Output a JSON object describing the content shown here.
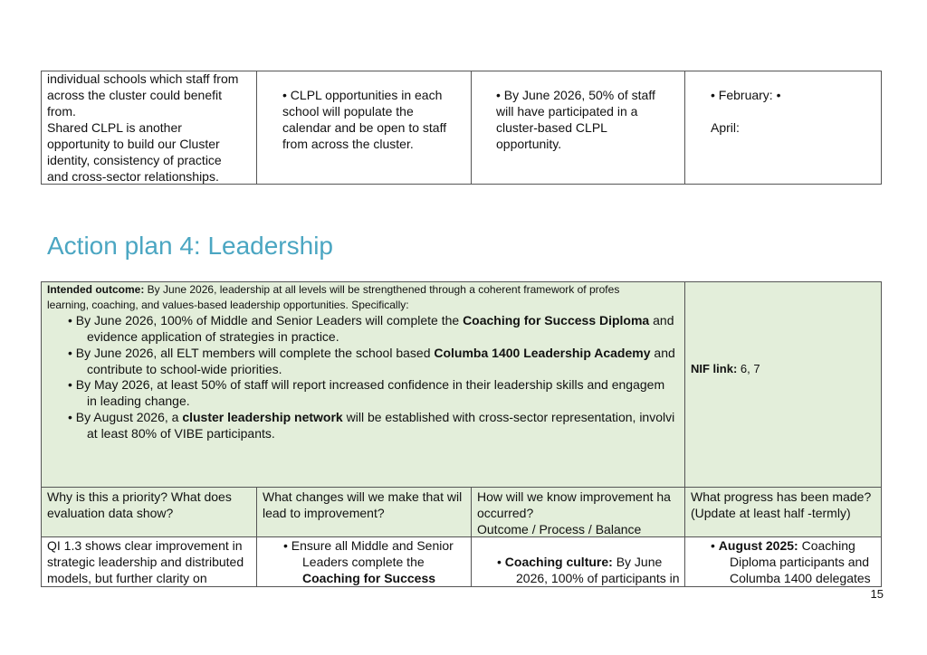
{
  "top_table": {
    "rows": [
      [
        [
          "individual schools which staff from",
          "across the cluster could benefit",
          "from.",
          "Shared CLPL is another",
          "opportunity to build our Cluster",
          "identity, consistency of practice",
          "and cross-sector relationships."
        ],
        [
          "• CLPL opportunities in each",
          "school will populate the",
          "calendar and be open to staff",
          "from across the cluster."
        ],
        [
          "• By June 2026, 50% of staff",
          "will have participated in a",
          "cluster-based CLPL",
          "opportunity."
        ],
        [
          "• February: •",
          "",
          "April:"
        ]
      ]
    ]
  },
  "heading": "Action plan 4: Leadership",
  "plan_table": {
    "outcome": [
      [
        "Intended outcome:",
        " By June 2026, leadership at all levels will be strengthened through a coherent framework of profes"
      ],
      [
        "learning, coaching, and values-based leadership opportunities. Specifically:"
      ]
    ],
    "bullets": [
      [
        [
          "• By June 2026, 100% of Middle and Senior Leaders will complete the ",
          "Coaching for Success Diploma",
          " and"
        ],
        [
          "evidence application of strategies in practice."
        ]
      ],
      [
        [
          "• By June 2026, all ELT members will complete the school based ",
          "Columba 1400 Leadership Academy",
          " and"
        ],
        [
          "contribute to school-wide priorities."
        ]
      ],
      [
        [
          "• By May 2026, at least 50% of staff will report increased confidence in their leadership skills and engagem"
        ],
        [
          "in leading change."
        ]
      ],
      [
        [
          "• By August 2026, a ",
          "cluster leadership network",
          " will be established with cross-sector representation, involvi"
        ],
        [
          "at least 80% of VIBE participants."
        ]
      ]
    ],
    "nif": [
      [
        "NIF link:",
        " 6, 7"
      ]
    ],
    "headers": [
      [
        "Why is this a priority? What does",
        "evaluation data show?"
      ],
      [
        "What changes will we make that wil",
        "lead to improvement?"
      ],
      [
        "How will we know improvement ha",
        "occurred?",
        "Outcome / Process / Balance"
      ],
      [
        "What progress has been made?",
        "(Update at least half -termly)"
      ]
    ],
    "rows": [
      [
        [
          "QI 1.3 shows clear improvement in",
          "strategic leadership and distributed",
          "models, but further clarity on"
        ],
        [
          "• Ensure all Middle and Senior",
          "Leaders complete the",
          "Coaching for Success"
        ],
        [
          [
            "• ",
            "Coaching culture:",
            " By June"
          ],
          "2026, 100% of participants in"
        ],
        [
          [
            "• ",
            "August 2025:",
            " Coaching"
          ],
          "Diploma participants and",
          "Columba 1400 delegates"
        ]
      ]
    ]
  },
  "page_number": "15"
}
